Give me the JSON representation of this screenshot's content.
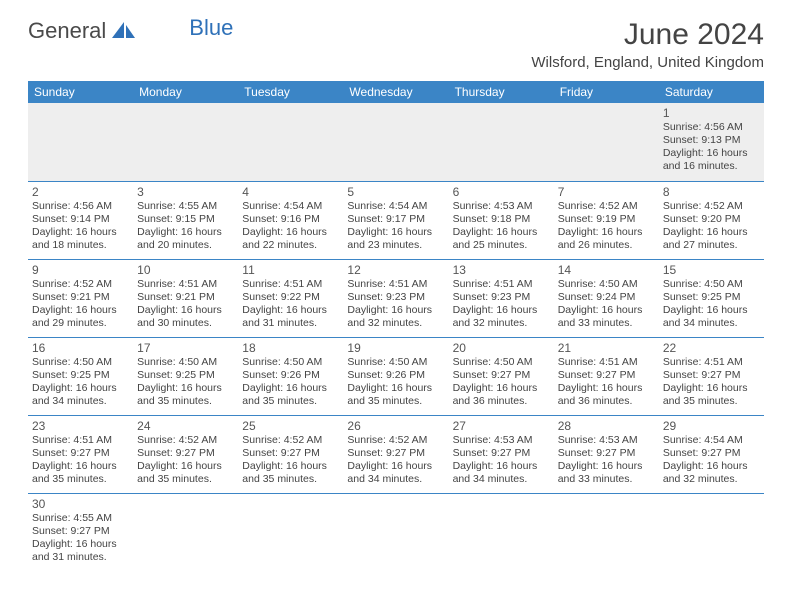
{
  "logo": {
    "part1": "General",
    "part2": "Blue"
  },
  "title": "June 2024",
  "location": "Wilsford, England, United Kingdom",
  "colors": {
    "header_bg": "#3b85c6",
    "header_text": "#ffffff",
    "rule": "#3b85c6",
    "first_row_bg": "#eeeeee",
    "text": "#444444",
    "logo_blue": "#2f71b8"
  },
  "days_of_week": [
    "Sunday",
    "Monday",
    "Tuesday",
    "Wednesday",
    "Thursday",
    "Friday",
    "Saturday"
  ],
  "weeks": [
    [
      null,
      null,
      null,
      null,
      null,
      null,
      {
        "n": "1",
        "sr": "4:56 AM",
        "ss": "9:13 PM",
        "dl": "16 hours and 16 minutes."
      }
    ],
    [
      {
        "n": "2",
        "sr": "4:56 AM",
        "ss": "9:14 PM",
        "dl": "16 hours and 18 minutes."
      },
      {
        "n": "3",
        "sr": "4:55 AM",
        "ss": "9:15 PM",
        "dl": "16 hours and 20 minutes."
      },
      {
        "n": "4",
        "sr": "4:54 AM",
        "ss": "9:16 PM",
        "dl": "16 hours and 22 minutes."
      },
      {
        "n": "5",
        "sr": "4:54 AM",
        "ss": "9:17 PM",
        "dl": "16 hours and 23 minutes."
      },
      {
        "n": "6",
        "sr": "4:53 AM",
        "ss": "9:18 PM",
        "dl": "16 hours and 25 minutes."
      },
      {
        "n": "7",
        "sr": "4:52 AM",
        "ss": "9:19 PM",
        "dl": "16 hours and 26 minutes."
      },
      {
        "n": "8",
        "sr": "4:52 AM",
        "ss": "9:20 PM",
        "dl": "16 hours and 27 minutes."
      }
    ],
    [
      {
        "n": "9",
        "sr": "4:52 AM",
        "ss": "9:21 PM",
        "dl": "16 hours and 29 minutes."
      },
      {
        "n": "10",
        "sr": "4:51 AM",
        "ss": "9:21 PM",
        "dl": "16 hours and 30 minutes."
      },
      {
        "n": "11",
        "sr": "4:51 AM",
        "ss": "9:22 PM",
        "dl": "16 hours and 31 minutes."
      },
      {
        "n": "12",
        "sr": "4:51 AM",
        "ss": "9:23 PM",
        "dl": "16 hours and 32 minutes."
      },
      {
        "n": "13",
        "sr": "4:51 AM",
        "ss": "9:23 PM",
        "dl": "16 hours and 32 minutes."
      },
      {
        "n": "14",
        "sr": "4:50 AM",
        "ss": "9:24 PM",
        "dl": "16 hours and 33 minutes."
      },
      {
        "n": "15",
        "sr": "4:50 AM",
        "ss": "9:25 PM",
        "dl": "16 hours and 34 minutes."
      }
    ],
    [
      {
        "n": "16",
        "sr": "4:50 AM",
        "ss": "9:25 PM",
        "dl": "16 hours and 34 minutes."
      },
      {
        "n": "17",
        "sr": "4:50 AM",
        "ss": "9:25 PM",
        "dl": "16 hours and 35 minutes."
      },
      {
        "n": "18",
        "sr": "4:50 AM",
        "ss": "9:26 PM",
        "dl": "16 hours and 35 minutes."
      },
      {
        "n": "19",
        "sr": "4:50 AM",
        "ss": "9:26 PM",
        "dl": "16 hours and 35 minutes."
      },
      {
        "n": "20",
        "sr": "4:50 AM",
        "ss": "9:27 PM",
        "dl": "16 hours and 36 minutes."
      },
      {
        "n": "21",
        "sr": "4:51 AM",
        "ss": "9:27 PM",
        "dl": "16 hours and 36 minutes."
      },
      {
        "n": "22",
        "sr": "4:51 AM",
        "ss": "9:27 PM",
        "dl": "16 hours and 35 minutes."
      }
    ],
    [
      {
        "n": "23",
        "sr": "4:51 AM",
        "ss": "9:27 PM",
        "dl": "16 hours and 35 minutes."
      },
      {
        "n": "24",
        "sr": "4:52 AM",
        "ss": "9:27 PM",
        "dl": "16 hours and 35 minutes."
      },
      {
        "n": "25",
        "sr": "4:52 AM",
        "ss": "9:27 PM",
        "dl": "16 hours and 35 minutes."
      },
      {
        "n": "26",
        "sr": "4:52 AM",
        "ss": "9:27 PM",
        "dl": "16 hours and 34 minutes."
      },
      {
        "n": "27",
        "sr": "4:53 AM",
        "ss": "9:27 PM",
        "dl": "16 hours and 34 minutes."
      },
      {
        "n": "28",
        "sr": "4:53 AM",
        "ss": "9:27 PM",
        "dl": "16 hours and 33 minutes."
      },
      {
        "n": "29",
        "sr": "4:54 AM",
        "ss": "9:27 PM",
        "dl": "16 hours and 32 minutes."
      }
    ],
    [
      {
        "n": "30",
        "sr": "4:55 AM",
        "ss": "9:27 PM",
        "dl": "16 hours and 31 minutes."
      },
      null,
      null,
      null,
      null,
      null,
      null
    ]
  ],
  "labels": {
    "sunrise": "Sunrise:",
    "sunset": "Sunset:",
    "daylight": "Daylight:"
  }
}
